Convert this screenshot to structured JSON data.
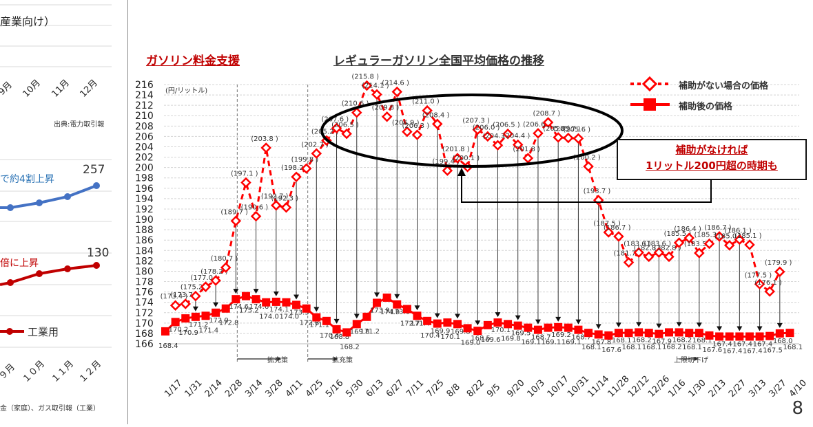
{
  "left_panel": {
    "top_title_fragment": "産業向け）",
    "top_axis_months": [
      "9月",
      "10月",
      "11月",
      "12月"
    ],
    "top_source": "出典:電力取引報",
    "household_annotation": "で約4割上昇",
    "household_end_value": "257",
    "industrial_annotation": "倍に上昇",
    "industrial_end_value": "130",
    "legend_industrial": "工業用",
    "bottom_axis_months": [
      "９月",
      "１０月",
      "１１月",
      "１２月"
    ],
    "bottom_source": "金（家庭）、ガス取引報（工業）",
    "colors": {
      "household": "#4472c4",
      "industrial": "#c00000"
    }
  },
  "header": {
    "section_label": "ガソリン料金支援",
    "chart_title": "レギュラーガソリン全国平均価格の推移"
  },
  "legend": {
    "no_subsidy": "補助がない場合の価格",
    "with_subsidy": "補助後の価格"
  },
  "callout": {
    "line1": "補助がなければ",
    "line2": "1リットル200円超の時期も"
  },
  "annotations": {
    "unit": "(円/リットル)",
    "expansion1": "拡充策",
    "expansion2": "拡充策",
    "cap_lowered": "上限切下げ"
  },
  "page_number": "8",
  "colors": {
    "series": "#ff0000",
    "section_label": "#c00000",
    "callout_text": "#c00000",
    "grid": "#d0d0d0"
  },
  "chart_data": {
    "type": "line",
    "title": "レギュラーガソリン全国平均価格の推移",
    "ylabel": "(円/リットル)",
    "xlabel": "",
    "ylim": [
      166,
      216
    ],
    "yticks": [
      166,
      168,
      170,
      172,
      174,
      176,
      178,
      180,
      182,
      184,
      186,
      188,
      190,
      192,
      194,
      196,
      198,
      200,
      202,
      204,
      206,
      208,
      210,
      212,
      214,
      216
    ],
    "x_tick_labels": [
      "1/17",
      "1/31",
      "2/14",
      "2/28",
      "3/14",
      "3/28",
      "4/11",
      "4/25",
      "5/16",
      "5/30",
      "6/13",
      "6/27",
      "7/11",
      "7/25",
      "8/8",
      "8/22",
      "9/5",
      "9/20",
      "10/3",
      "10/17",
      "10/31",
      "11/14",
      "11/28",
      "12/12",
      "12/26",
      "1/16",
      "1/30",
      "2/13",
      "2/27",
      "3/13",
      "3/27",
      "4/10"
    ],
    "grid": true,
    "legend_position": "top-right",
    "series": [
      {
        "name": "補助がない場合の価格",
        "style": "dashed-diamond",
        "points": [
          {
            "i": 1,
            "v": 173.4
          },
          {
            "i": 2,
            "v": 173.7
          },
          {
            "i": 3,
            "v": 175.2
          },
          {
            "i": 4,
            "v": 177.0
          },
          {
            "i": 5,
            "v": 178.2
          },
          {
            "i": 6,
            "v": 180.7
          },
          {
            "i": 7,
            "v": 189.7
          },
          {
            "i": 8,
            "v": 197.1
          },
          {
            "i": 9,
            "v": 190.6
          },
          {
            "i": 10,
            "v": 203.8
          },
          {
            "i": 11,
            "v": 192.7
          },
          {
            "i": 12,
            "v": 192.3
          },
          {
            "i": 13,
            "v": 198.2
          },
          {
            "i": 14,
            "v": 199.8
          },
          {
            "i": 15,
            "v": 202.7
          },
          {
            "i": 16,
            "v": 205.2
          },
          {
            "i": 17,
            "v": 207.6
          },
          {
            "i": 18,
            "v": 206.5
          },
          {
            "i": 19,
            "v": 210.6
          },
          {
            "i": 20,
            "v": 215.8
          },
          {
            "i": 21,
            "v": 214.1
          },
          {
            "i": 22,
            "v": 209.8
          },
          {
            "i": 23,
            "v": 214.6
          },
          {
            "i": 24,
            "v": 206.9
          },
          {
            "i": 25,
            "v": 206.3
          },
          {
            "i": 26,
            "v": 211.0
          },
          {
            "i": 27,
            "v": 208.4
          },
          {
            "i": 28,
            "v": 199.4
          },
          {
            "i": 29,
            "v": 201.8
          },
          {
            "i": 30,
            "v": 200.1
          },
          {
            "i": 31,
            "v": 207.3
          },
          {
            "i": 32,
            "v": 206.0
          },
          {
            "i": 33,
            "v": 204.3
          },
          {
            "i": 34,
            "v": 206.5
          },
          {
            "i": 35,
            "v": 204.4
          },
          {
            "i": 36,
            "v": 201.8
          },
          {
            "i": 37,
            "v": 206.6
          },
          {
            "i": 38,
            "v": 208.7
          },
          {
            "i": 39,
            "v": 205.8
          },
          {
            "i": 40,
            "v": 205.7
          },
          {
            "i": 41,
            "v": 205.6
          },
          {
            "i": 42,
            "v": 200.2
          },
          {
            "i": 43,
            "v": 193.7
          },
          {
            "i": 44,
            "v": 187.5
          },
          {
            "i": 45,
            "v": 186.7
          },
          {
            "i": 46,
            "v": 181.7
          },
          {
            "i": 47,
            "v": 183.6
          },
          {
            "i": 48,
            "v": 182.8
          },
          {
            "i": 49,
            "v": 183.6
          },
          {
            "i": 50,
            "v": 182.8
          },
          {
            "i": 51,
            "v": 185.5
          },
          {
            "i": 52,
            "v": 186.4
          },
          {
            "i": 53,
            "v": 183.5
          },
          {
            "i": 54,
            "v": 185.3
          },
          {
            "i": 55,
            "v": 186.7
          },
          {
            "i": 56,
            "v": 185.0
          },
          {
            "i": 57,
            "v": 186.1
          },
          {
            "i": 58,
            "v": 185.1
          },
          {
            "i": 59,
            "v": 177.5
          },
          {
            "i": 60,
            "v": 176.1
          },
          {
            "i": 61,
            "v": 179.9
          }
        ]
      },
      {
        "name": "補助後の価格",
        "style": "solid-square",
        "points": [
          {
            "i": 0,
            "v": 168.4
          },
          {
            "i": 1,
            "v": 170.2
          },
          {
            "i": 2,
            "v": 170.9
          },
          {
            "i": 3,
            "v": 171.2
          },
          {
            "i": 4,
            "v": 171.4
          },
          {
            "i": 5,
            "v": 172.0
          },
          {
            "i": 6,
            "v": 172.8
          },
          {
            "i": 7,
            "v": 174.6
          },
          {
            "i": 8,
            "v": 175.2
          },
          {
            "i": 9,
            "v": 174.6
          },
          {
            "i": 10,
            "v": 174.0
          },
          {
            "i": 11,
            "v": 174.1
          },
          {
            "i": 12,
            "v": 174.0
          },
          {
            "i": 13,
            "v": 173.5
          },
          {
            "i": 14,
            "v": 172.8
          },
          {
            "i": 15,
            "v": 171.1
          },
          {
            "i": 16,
            "v": 170.4
          },
          {
            "i": 17,
            "v": 168.8
          },
          {
            "i": 18,
            "v": 168.2
          },
          {
            "i": 19,
            "v": 169.8
          },
          {
            "i": 20,
            "v": 171.2
          },
          {
            "i": 21,
            "v": 173.9
          },
          {
            "i": 22,
            "v": 174.9
          },
          {
            "i": 23,
            "v": 173.6
          },
          {
            "i": 24,
            "v": 172.7
          },
          {
            "i": 25,
            "v": 171.4
          },
          {
            "i": 26,
            "v": 170.4
          },
          {
            "i": 27,
            "v": 169.9
          },
          {
            "i": 28,
            "v": 170.1
          },
          {
            "i": 29,
            "v": 169.8
          },
          {
            "i": 30,
            "v": 169.0
          },
          {
            "i": 31,
            "v": 168.5
          },
          {
            "i": 32,
            "v": 169.6
          },
          {
            "i": 33,
            "v": 170.1
          },
          {
            "i": 34,
            "v": 169.8
          },
          {
            "i": 35,
            "v": 169.5
          },
          {
            "i": 36,
            "v": 169.1
          },
          {
            "i": 37,
            "v": 168.7
          },
          {
            "i": 38,
            "v": 169.1
          },
          {
            "i": 39,
            "v": 169.2
          },
          {
            "i": 40,
            "v": 169.1
          },
          {
            "i": 41,
            "v": 168.7
          },
          {
            "i": 42,
            "v": 168.1
          },
          {
            "i": 43,
            "v": 167.8
          },
          {
            "i": 44,
            "v": 167.6
          },
          {
            "i": 45,
            "v": 168.1
          },
          {
            "i": 46,
            "v": 168.1
          },
          {
            "i": 47,
            "v": 168.2
          },
          {
            "i": 48,
            "v": 168.1
          },
          {
            "i": 49,
            "v": 167.9
          },
          {
            "i": 50,
            "v": 168.2
          },
          {
            "i": 51,
            "v": 168.2
          },
          {
            "i": 52,
            "v": 168.1
          },
          {
            "i": 53,
            "v": 168.1
          },
          {
            "i": 54,
            "v": 167.6
          },
          {
            "i": 55,
            "v": 167.4
          },
          {
            "i": 56,
            "v": 167.4
          },
          {
            "i": 57,
            "v": 167.4
          },
          {
            "i": 58,
            "v": 167.4
          },
          {
            "i": 59,
            "v": 167.4
          },
          {
            "i": 60,
            "v": 167.5
          },
          {
            "i": 61,
            "v": 168.0
          },
          {
            "i": 62,
            "v": 168.1
          }
        ]
      }
    ],
    "annotations": [
      {
        "text": "拡充策",
        "x_index": 7
      },
      {
        "text": "拡充策",
        "x_index": 14
      },
      {
        "text": "上限切下げ",
        "x_index": 52
      },
      {
        "text": "補助がなければ 1リットル200円超の時期も",
        "type": "callout"
      }
    ]
  }
}
